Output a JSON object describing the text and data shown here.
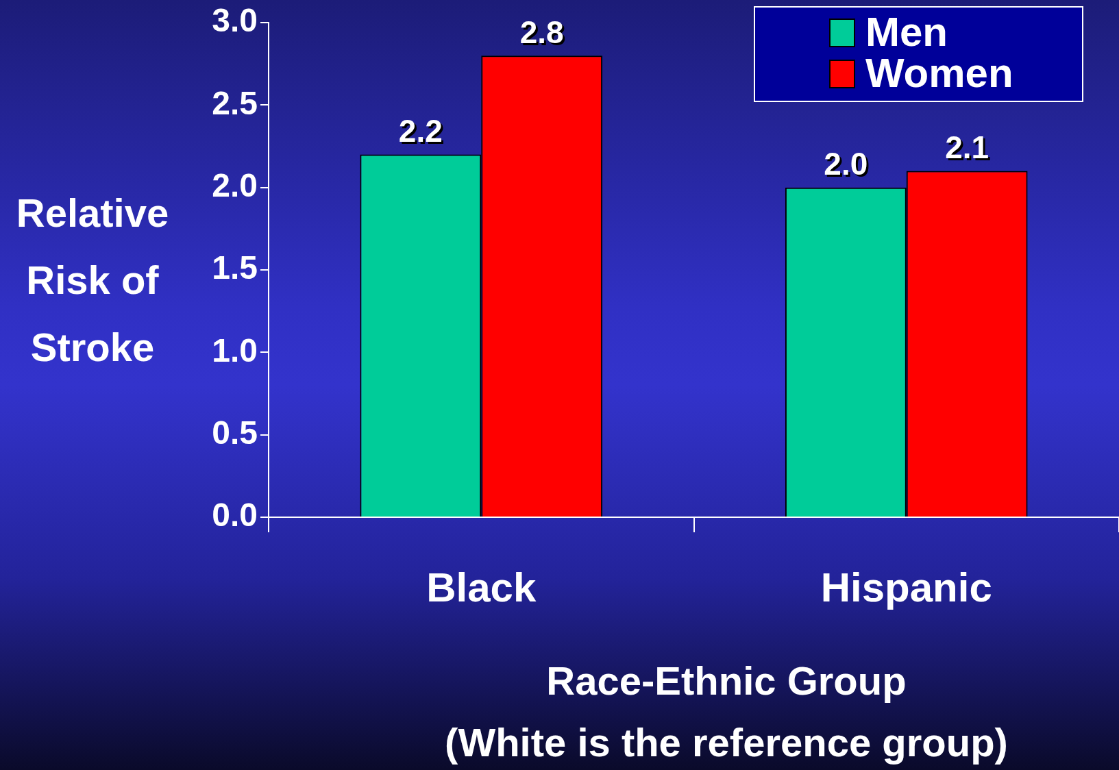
{
  "chart_data": {
    "type": "bar",
    "xlabel": "Race-Ethnic Group",
    "ylabel": "Relative Risk of Stroke",
    "annotations": [
      "(White is the reference group)"
    ],
    "categories": [
      "Black",
      "Hispanic"
    ],
    "series": [
      {
        "name": "Men",
        "color": "#00cc99",
        "values": [
          2.2,
          2.0
        ],
        "value_labels": [
          "2.2",
          "2.0"
        ]
      },
      {
        "name": "Women",
        "color": "#ff0000",
        "values": [
          2.8,
          2.1
        ],
        "value_labels": [
          "2.8",
          "2.1"
        ]
      }
    ],
    "ylim": [
      0,
      3
    ],
    "yticks": [
      {
        "value": 0,
        "label": "0.0"
      },
      0.5,
      {
        "value": 1,
        "label": "1.0"
      },
      1.5,
      {
        "value": 2,
        "label": "2.0"
      },
      2.5,
      {
        "value": 3,
        "label": "3.0"
      }
    ],
    "grid": false,
    "legend": "top right"
  }
}
